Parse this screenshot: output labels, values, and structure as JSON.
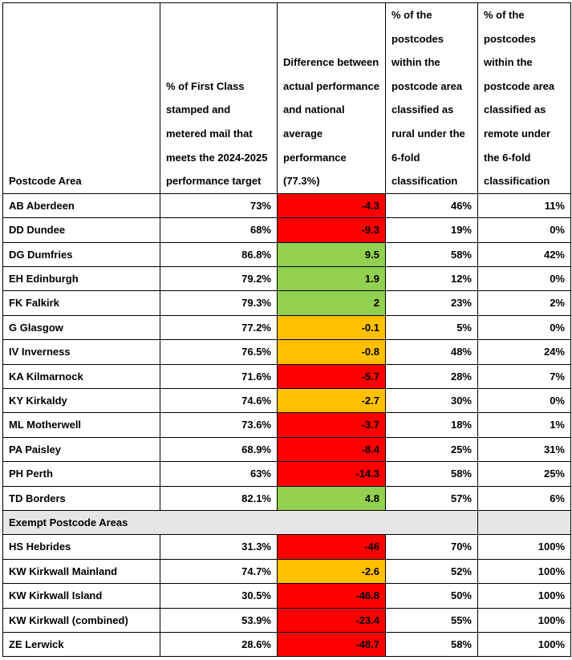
{
  "table": {
    "header": [
      "Postcode Area",
      "% of First Class stamped and metered mail that meets the 2024-2025 performance target",
      "Difference between actual performance and national average performance (77.3%)",
      "% of the postcodes within the postcode area classified as rural under the 6-fold classification",
      "% of the postcodes within the postcode area classified as remote under the 6-fold classification"
    ],
    "rows": [
      {
        "cells": [
          "AB Aberdeen",
          "73%",
          "-4.3",
          "46%",
          "11%"
        ],
        "color": "#ff0000"
      },
      {
        "cells": [
          "DD Dundee",
          "68%",
          "-9.3",
          "19%",
          "0%"
        ],
        "color": "#ff0000"
      },
      {
        "cells": [
          "DG Dumfries",
          "86.8%",
          "9.5",
          "58%",
          "42%"
        ],
        "color": "#92d050"
      },
      {
        "cells": [
          "EH Edinburgh",
          "79.2%",
          "1.9",
          "12%",
          "0%"
        ],
        "color": "#92d050"
      },
      {
        "cells": [
          "FK Falkirk",
          "79.3%",
          "2",
          "23%",
          "2%"
        ],
        "color": "#92d050"
      },
      {
        "cells": [
          "G Glasgow",
          "77.2%",
          "-0.1",
          "5%",
          "0%"
        ],
        "color": "#ffc000"
      },
      {
        "cells": [
          "IV Inverness",
          "76.5%",
          "-0.8",
          "48%",
          "24%"
        ],
        "color": "#ffc000"
      },
      {
        "cells": [
          "KA Kilmarnock",
          "71.6%",
          "-5.7",
          "28%",
          "7%"
        ],
        "color": "#ff0000"
      },
      {
        "cells": [
          "KY Kirkaldy",
          "74.6%",
          "-2.7",
          "30%",
          "0%"
        ],
        "color": "#ffc000"
      },
      {
        "cells": [
          "ML Motherwell",
          "73.6%",
          "-3.7",
          "18%",
          "1%"
        ],
        "color": "#ff0000"
      },
      {
        "cells": [
          "PA Paisley",
          "68.9%",
          "-8.4",
          "25%",
          "31%"
        ],
        "color": "#ff0000"
      },
      {
        "cells": [
          "PH Perth",
          "63%",
          "-14.3",
          "58%",
          "25%"
        ],
        "color": "#ff0000"
      },
      {
        "cells": [
          "TD Borders",
          "82.1%",
          "4.8",
          "57%",
          "6%"
        ],
        "color": "#92d050"
      },
      {
        "section": "Exempt Postcode Areas"
      },
      {
        "cells": [
          "HS Hebrides",
          "31.3%",
          "-46",
          "70%",
          "100%"
        ],
        "color": "#ff0000"
      },
      {
        "cells": [
          "KW Kirkwall Mainland",
          "74.7%",
          "-2.6",
          "52%",
          "100%"
        ],
        "color": "#ffc000"
      },
      {
        "cells": [
          "KW Kirkwall Island",
          "30.5%",
          "-46.8",
          "50%",
          "100%"
        ],
        "color": "#ff0000"
      },
      {
        "cells": [
          "KW Kirkwall (combined)",
          "53.9%",
          "-23.4",
          "55%",
          "100%"
        ],
        "color": "#ff0000"
      },
      {
        "cells": [
          "ZE Lerwick",
          "28.6%",
          "-48.7",
          "58%",
          "100%"
        ],
        "color": "#ff0000"
      }
    ]
  }
}
